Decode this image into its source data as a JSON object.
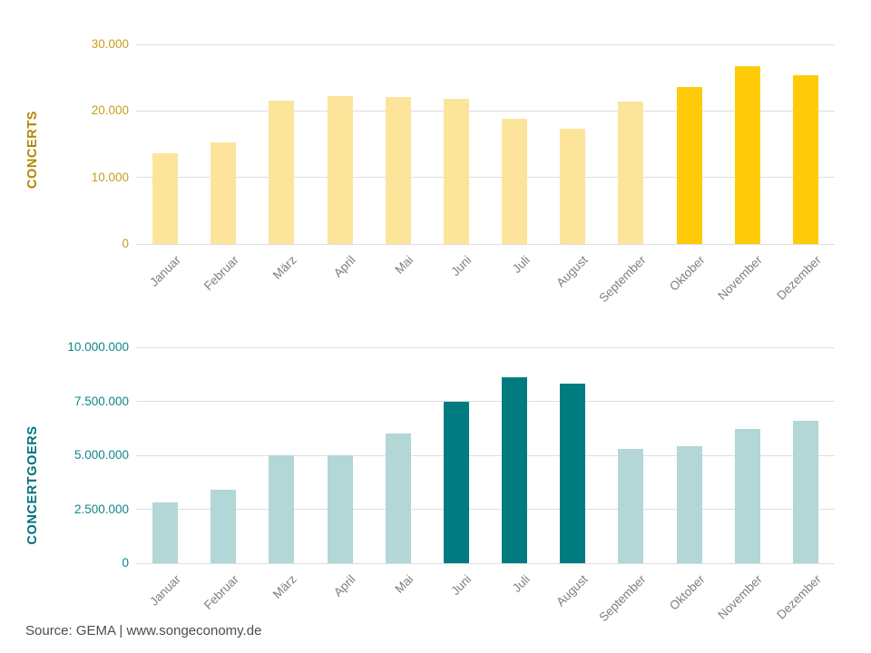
{
  "source": {
    "text": "Source: GEMA | www.songeconomy.de"
  },
  "colors": {
    "grid": "#dedede",
    "month_label": "#7f7f7f",
    "source_text": "#4d4d4d",
    "background": "#ffffff"
  },
  "chart_data": [
    {
      "type": "bar",
      "title": "CONCERTS",
      "categories": [
        "Januar",
        "Februar",
        "März",
        "April",
        "Mai",
        "Juni",
        "Juli",
        "August",
        "September",
        "Oktober",
        "November",
        "Dezember"
      ],
      "values": [
        13600,
        15300,
        21600,
        22200,
        22100,
        21800,
        18800,
        17300,
        21400,
        23600,
        26700,
        25300
      ],
      "ylim": [
        0,
        30000
      ],
      "yticks": [
        0,
        10000,
        20000,
        30000
      ],
      "ytick_labels": [
        "0",
        "10.000",
        "20.000",
        "30.000"
      ],
      "highlight_indices": [
        9,
        10,
        11
      ],
      "bar_color": "#fce59b",
      "highlight_color": "#ffca08",
      "tick_color": "#c79e1d",
      "title_color": "#b28704",
      "xlabel": "",
      "ylabel": "CONCERTS",
      "grid": true,
      "legend": "none",
      "x_label_rotation_deg": 45
    },
    {
      "type": "bar",
      "title": "CONCERTGOERS",
      "categories": [
        "Januar",
        "Februar",
        "März",
        "April",
        "Mai",
        "Juni",
        "Juli",
        "August",
        "September",
        "Oktober",
        "November",
        "Dezember"
      ],
      "values": [
        2800000,
        3400000,
        5000000,
        5000000,
        6000000,
        7500000,
        8600000,
        8300000,
        5300000,
        5400000,
        6200000,
        6600000
      ],
      "ylim": [
        0,
        10000000
      ],
      "yticks": [
        0,
        2500000,
        5000000,
        7500000,
        10000000
      ],
      "ytick_labels": [
        "0",
        "2.500.000",
        "5.000.000",
        "7.500.000",
        "10.000.000"
      ],
      "highlight_indices": [
        5,
        6,
        7
      ],
      "bar_color": "#b3d6d6",
      "highlight_color": "#007c80",
      "tick_color": "#12848a",
      "title_color": "#00737b",
      "xlabel": "",
      "ylabel": "CONCERTGOERS",
      "grid": true,
      "legend": "none",
      "x_label_rotation_deg": 45
    }
  ]
}
